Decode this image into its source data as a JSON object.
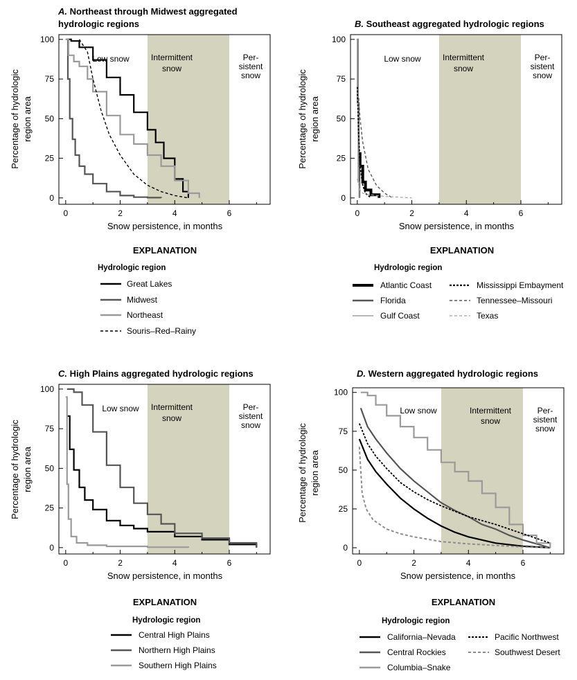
{
  "chart_data": [
    {
      "panel": "A",
      "type": "line",
      "title_letter": "A.",
      "title_lines": [
        "Northeast through Midwest aggregated",
        "hydrologic regions"
      ],
      "xlabel": "Snow persistence, in months",
      "ylabel_lines": [
        "Percentage of hydrologic",
        "region area"
      ],
      "xlim": [
        -0.25,
        7.5
      ],
      "ylim": [
        -4,
        103
      ],
      "xticks": [
        0,
        2,
        4,
        6
      ],
      "yticks": [
        0,
        25,
        50,
        75,
        100
      ],
      "zones": [
        {
          "name": "low",
          "lines": [
            "Low snow"
          ]
        },
        {
          "name": "intermittent",
          "lines": [
            "Intermittent",
            "snow"
          ],
          "x_range": [
            3,
            6
          ],
          "shaded": true
        },
        {
          "name": "persistent",
          "lines": [
            "Per-",
            "sistent",
            "snow"
          ]
        }
      ],
      "legend_title": "Hydrologic region",
      "series": [
        {
          "name": "Great Lakes",
          "color": "#000000",
          "width": 2.2,
          "dash": "",
          "step": true,
          "x": [
            0.05,
            0.2,
            0.5,
            1,
            1.5,
            2,
            2.5,
            3,
            3.3,
            3.6,
            4,
            4.3,
            4.5
          ],
          "y": [
            100,
            99,
            95,
            87,
            76,
            65,
            54,
            43,
            35,
            25,
            12,
            4,
            0
          ]
        },
        {
          "name": "Midwest",
          "color": "#555555",
          "width": 2.2,
          "dash": "",
          "step": true,
          "x": [
            0,
            0.08,
            0.15,
            0.25,
            0.35,
            0.5,
            0.7,
            1,
            1.5,
            2,
            2.5,
            3,
            3.5
          ],
          "y": [
            100,
            75,
            50,
            37,
            27,
            20,
            15,
            9,
            4,
            1.5,
            0.5,
            0.2,
            0
          ]
        },
        {
          "name": "Northeast",
          "color": "#9a9a9a",
          "width": 2.2,
          "dash": "",
          "step": true,
          "x": [
            0,
            0.1,
            0.3,
            0.5,
            0.8,
            1,
            1.5,
            2,
            2.5,
            3,
            3.5,
            4,
            4.5,
            4.9
          ],
          "y": [
            100,
            90,
            86,
            83,
            75,
            67,
            52,
            40,
            34,
            27,
            20,
            11,
            3,
            0
          ]
        },
        {
          "name": "Souris–Red–Rainy",
          "color": "#000000",
          "width": 1.4,
          "dash": "4,3",
          "step": false,
          "x": [
            0.5,
            0.8,
            1,
            1.3,
            1.6,
            2,
            2.5,
            3,
            3.5,
            4,
            4.5
          ],
          "y": [
            100,
            92,
            75,
            55,
            40,
            27,
            15,
            8,
            4,
            1.5,
            0
          ]
        }
      ]
    },
    {
      "panel": "B",
      "type": "line",
      "title_letter": "B.",
      "title_lines": [
        "Southeast aggregated hydrologic regions"
      ],
      "xlabel": "Snow persistence, in months",
      "ylabel_lines": [
        "Percentage of hydrologic",
        "region area"
      ],
      "xlim": [
        -0.25,
        7.5
      ],
      "ylim": [
        -4,
        103
      ],
      "xticks": [
        0,
        2,
        4,
        6
      ],
      "yticks": [
        0,
        25,
        50,
        75,
        100
      ],
      "zones": [
        {
          "name": "low",
          "lines": [
            "Low snow"
          ]
        },
        {
          "name": "intermittent",
          "lines": [
            "Intermittent",
            "snow"
          ],
          "x_range": [
            3,
            6
          ],
          "shaded": true
        },
        {
          "name": "persistent",
          "lines": [
            "Per-",
            "sistent",
            "snow"
          ]
        }
      ],
      "legend_title": "Hydrologic region",
      "series": [
        {
          "name": "Atlantic Coast",
          "color": "#000000",
          "width": 4,
          "dash": "",
          "step": true,
          "x": [
            0.05,
            0.1,
            0.2,
            0.3,
            0.5,
            0.8
          ],
          "y": [
            28,
            20,
            10,
            5,
            2,
            0
          ]
        },
        {
          "name": "Florida",
          "color": "#555555",
          "width": 2.2,
          "dash": "",
          "step": true,
          "x": [
            0,
            0.02,
            0.05,
            0.08
          ],
          "y": [
            100,
            60,
            20,
            0
          ]
        },
        {
          "name": "Gulf Coast",
          "color": "#a0a0a0",
          "width": 1.6,
          "dash": "",
          "step": true,
          "x": [
            -0.03,
            0,
            0.03,
            0.06
          ],
          "y": [
            100,
            60,
            10,
            0
          ]
        },
        {
          "name": "Mississippi Embayment",
          "color": "#000000",
          "width": 1.8,
          "dash": "3,2",
          "step": false,
          "x": [
            0,
            0.05,
            0.1,
            0.2,
            0.3,
            0.5
          ],
          "y": [
            70,
            40,
            20,
            8,
            3,
            0
          ]
        },
        {
          "name": "Tennessee–Missouri",
          "color": "#555555",
          "width": 1.4,
          "dash": "4,3",
          "step": false,
          "x": [
            0.05,
            0.1,
            0.2,
            0.4,
            0.7,
            1,
            1.3
          ],
          "y": [
            63,
            50,
            35,
            18,
            8,
            3,
            0
          ]
        },
        {
          "name": "Texas",
          "color": "#a0a0a0",
          "width": 1.2,
          "dash": "4,3",
          "step": false,
          "x": [
            0,
            0.05,
            0.1,
            0.2,
            0.5,
            1,
            2
          ],
          "y": [
            12,
            8,
            5,
            3,
            2,
            1,
            0
          ]
        }
      ]
    },
    {
      "panel": "C",
      "type": "line",
      "title_letter": "C.",
      "title_lines": [
        "High Plains aggregated hydrologic regions"
      ],
      "xlabel": "Snow persistence, in months",
      "ylabel_lines": [
        "Percentage of hydrologic",
        "region area"
      ],
      "xlim": [
        -0.25,
        7.5
      ],
      "ylim": [
        -4,
        103
      ],
      "xticks": [
        0,
        2,
        4,
        6
      ],
      "yticks": [
        0,
        25,
        50,
        75,
        100
      ],
      "zones": [
        {
          "name": "low",
          "lines": [
            "Low snow"
          ]
        },
        {
          "name": "intermittent",
          "lines": [
            "Intermittent",
            "snow"
          ],
          "x_range": [
            3,
            6
          ],
          "shaded": true
        },
        {
          "name": "persistent",
          "lines": [
            "Per-",
            "sistent",
            "snow"
          ]
        }
      ],
      "legend_title": "Hydrologic region",
      "series": [
        {
          "name": "Central High Plains",
          "color": "#000000",
          "width": 2.2,
          "dash": "",
          "step": true,
          "x": [
            0.05,
            0.15,
            0.3,
            0.5,
            0.7,
            1,
            1.5,
            2,
            2.5,
            3,
            4,
            5,
            6,
            7
          ],
          "y": [
            83,
            62,
            49,
            38,
            30,
            24,
            17,
            14,
            12,
            10,
            7,
            5,
            2,
            0
          ]
        },
        {
          "name": "Northern High Plains",
          "color": "#555555",
          "width": 2.2,
          "dash": "",
          "step": true,
          "x": [
            0.05,
            0.3,
            0.6,
            1,
            1.5,
            2,
            2.5,
            3,
            3.5,
            4,
            5,
            6,
            7
          ],
          "y": [
            100,
            98,
            90,
            73,
            52,
            38,
            28,
            21,
            15,
            9,
            6,
            3,
            0
          ]
        },
        {
          "name": "Southern High Plains",
          "color": "#9a9a9a",
          "width": 2.2,
          "dash": "",
          "step": true,
          "x": [
            0,
            0.05,
            0.1,
            0.2,
            0.4,
            0.8,
            1.5,
            3,
            4.5
          ],
          "y": [
            95,
            40,
            18,
            7,
            3,
            1.5,
            0.8,
            0.3,
            0
          ]
        }
      ]
    },
    {
      "panel": "D",
      "type": "line",
      "title_letter": "D.",
      "title_lines": [
        "Western aggregated hydrologic regions"
      ],
      "xlabel": "Snow persistence, in months",
      "ylabel_lines": [
        "Percentage of hydrologic",
        "region area"
      ],
      "xlim": [
        -0.25,
        7.5
      ],
      "ylim": [
        -4,
        103
      ],
      "xticks": [
        0,
        2,
        4,
        6
      ],
      "yticks": [
        0,
        25,
        50,
        75,
        100
      ],
      "zones": [
        {
          "name": "low",
          "lines": [
            "Low snow"
          ]
        },
        {
          "name": "intermittent",
          "lines": [
            "Intermittent",
            "snow"
          ],
          "x_range": [
            3,
            6
          ],
          "shaded": true
        },
        {
          "name": "persistent",
          "lines": [
            "Per-",
            "sistent",
            "snow"
          ]
        }
      ],
      "legend_title": "Hydrologic region",
      "series": [
        {
          "name": "California–Nevada",
          "color": "#000000",
          "width": 2.2,
          "dash": "",
          "step": false,
          "x": [
            0,
            0.3,
            0.6,
            1,
            1.5,
            2,
            2.5,
            3,
            3.5,
            4,
            5,
            6,
            7
          ],
          "y": [
            70,
            57,
            49,
            41,
            32,
            25,
            19,
            14,
            10,
            7,
            3,
            1,
            0
          ]
        },
        {
          "name": "Central Rockies",
          "color": "#555555",
          "width": 2.2,
          "dash": "",
          "step": false,
          "x": [
            0.05,
            0.3,
            0.6,
            1,
            1.5,
            2,
            2.5,
            3,
            3.5,
            4,
            4.5,
            5,
            5.5,
            6,
            7
          ],
          "y": [
            90,
            78,
            70,
            61,
            51,
            43,
            36,
            29,
            24,
            20,
            15,
            12,
            8,
            5,
            0
          ]
        },
        {
          "name": "Columbia–Snake",
          "color": "#9a9a9a",
          "width": 2.2,
          "dash": "",
          "step": true,
          "x": [
            0.05,
            0.3,
            0.6,
            1,
            1.5,
            2,
            2.5,
            3,
            3.5,
            4,
            4.5,
            5,
            5.5,
            6,
            6.5,
            7
          ],
          "y": [
            100,
            98,
            92,
            85,
            78,
            71,
            63,
            55,
            49,
            43,
            35,
            26,
            15,
            8,
            3,
            0
          ]
        },
        {
          "name": "Pacific Northwest",
          "color": "#000000",
          "width": 1.8,
          "dash": "3,2",
          "step": false,
          "x": [
            0,
            0.3,
            0.6,
            1,
            1.5,
            2,
            2.5,
            3,
            4,
            5,
            6,
            7
          ],
          "y": [
            80,
            67,
            59,
            51,
            42,
            36,
            31,
            27,
            20,
            15,
            9,
            3
          ]
        },
        {
          "name": "Southwest Desert",
          "color": "#8c8c8c",
          "width": 2,
          "dash": "4,3",
          "step": false,
          "x": [
            0,
            0.1,
            0.25,
            0.5,
            1,
            1.5,
            2,
            3,
            4,
            5,
            6,
            7
          ],
          "y": [
            65,
            35,
            25,
            18,
            12,
            9,
            7,
            4,
            2.5,
            1.5,
            0.5,
            0
          ]
        }
      ]
    }
  ],
  "explanation_label": "EXPLANATION"
}
